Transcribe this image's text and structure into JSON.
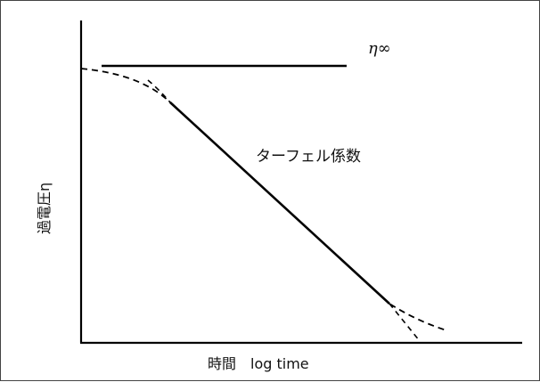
{
  "diagram": {
    "x_axis_label": "時間　log time",
    "y_axis_label": "過電圧η",
    "eta_infinity_label": "η∞",
    "tafel_label": "ターフェル係数"
  }
}
